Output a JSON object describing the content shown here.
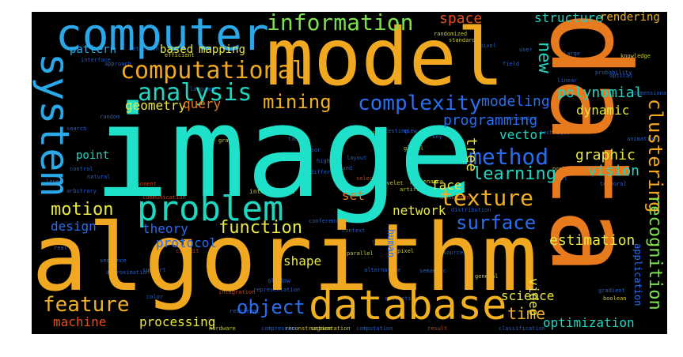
{
  "words": {
    "image": {
      "text": "image",
      "color": "#1fe0c8"
    },
    "data": {
      "text": "data",
      "color": "#e87a1e"
    },
    "algorithm": {
      "text": "algorithm",
      "color": "#f0a820"
    },
    "model": {
      "text": "model",
      "color": "#f0a820"
    },
    "computer": {
      "text": "computer",
      "color": "#2aa8e8"
    },
    "database": {
      "text": "database",
      "color": "#f0b020"
    },
    "system": {
      "text": "system",
      "color": "#2aa8e8"
    },
    "problem": {
      "text": "problem",
      "color": "#1fd6c0"
    },
    "computational": {
      "text": "computational",
      "color": "#f0a820"
    },
    "analysis": {
      "text": "analysis",
      "color": "#1fd6c0"
    },
    "information": {
      "text": "information",
      "color": "#7ee050"
    },
    "complexity": {
      "text": "complexity",
      "color": "#2a6ef0"
    },
    "method": {
      "text": "method",
      "color": "#2a6ef0"
    },
    "texture": {
      "text": "texture",
      "color": "#f0b020"
    },
    "surface": {
      "text": "surface",
      "color": "#2a6ef0"
    },
    "clustering": {
      "text": "clustering",
      "color": "#f0a820"
    },
    "recognition": {
      "text": "recognition",
      "color": "#7ee050"
    },
    "feature": {
      "text": "feature",
      "color": "#f0b020"
    },
    "object": {
      "text": "object",
      "color": "#2a6ef0"
    },
    "mining": {
      "text": "mining",
      "color": "#f0b020"
    },
    "new": {
      "text": "new",
      "color": "#1fd6c0"
    },
    "motion": {
      "text": "motion",
      "color": "#e8e840"
    },
    "function": {
      "text": "function",
      "color": "#e8e840"
    },
    "learning": {
      "text": "learning",
      "color": "#1fd6c0"
    },
    "time": {
      "text": "time",
      "color": "#f0b020"
    },
    "space": {
      "text": "space",
      "color": "#e05020"
    },
    "structure": {
      "text": "structure",
      "color": "#1fd6c0"
    },
    "rendering": {
      "text": "rendering",
      "color": "#f0b020"
    },
    "polynomial": {
      "text": "polynomial",
      "color": "#1fd6c0"
    },
    "modeling": {
      "text": "modeling",
      "color": "#2a6ef0"
    },
    "programming": {
      "text": "programming",
      "color": "#2a6ef0"
    },
    "graphic": {
      "text": "graphic",
      "color": "#e8e840"
    },
    "vision": {
      "text": "vision",
      "color": "#1fd6c0"
    },
    "vector": {
      "text": "vector",
      "color": "#1fd6c0"
    },
    "tree": {
      "text": "tree",
      "color": "#e8e840"
    },
    "dynamic": {
      "text": "dynamic",
      "color": "#e8e840"
    },
    "geometry": {
      "text": "geometry",
      "color": "#e8e840"
    },
    "query": {
      "text": "query",
      "color": "#e87a1e"
    },
    "theory": {
      "text": "theory",
      "color": "#2a6ef0"
    },
    "protocol": {
      "text": "protocol",
      "color": "#2a6ef0"
    },
    "design": {
      "text": "design",
      "color": "#2a6ef0"
    },
    "network": {
      "text": "network",
      "color": "#e8e840"
    },
    "estimation": {
      "text": "estimation",
      "color": "#e8e840"
    },
    "video": {
      "text": "video",
      "color": "#e8e840"
    },
    "science": {
      "text": "science",
      "color": "#e8e840"
    },
    "optimization": {
      "text": "optimization",
      "color": "#1fd6c0"
    },
    "processing": {
      "text": "processing",
      "color": "#e8e840"
    },
    "machine": {
      "text": "machine",
      "color": "#e05020"
    },
    "shape": {
      "text": "shape",
      "color": "#e8e840"
    },
    "set": {
      "text": "set",
      "color": "#e87a1e"
    },
    "face": {
      "text": "face",
      "color": "#e8e840"
    },
    "point": {
      "text": "point",
      "color": "#1fd6c0"
    },
    "pattern": {
      "text": "pattern",
      "color": "#2aa8e8"
    },
    "based": {
      "text": "based",
      "color": "#e8e840"
    },
    "mapping": {
      "text": "mapping",
      "color": "#e8e840"
    },
    "application": {
      "text": "application",
      "color": "#2a6ef0"
    },
    "human": {
      "text": "human",
      "color": "#2a6ef0"
    }
  },
  "small_words": [
    {
      "text": "interface",
      "color": "#2a6ef0"
    },
    {
      "text": "approach",
      "color": "#2a6ef0"
    },
    {
      "text": "detection",
      "color": "#2a6ef0"
    },
    {
      "text": "efficient",
      "color": "#e8e840"
    },
    {
      "text": "language",
      "color": "#2a6ef0"
    },
    {
      "text": "graph",
      "color": "#e8e840"
    },
    {
      "text": "search",
      "color": "#2a6ef0"
    },
    {
      "text": "random",
      "color": "#2a6ef0"
    },
    {
      "text": "control",
      "color": "#2a6ef0"
    },
    {
      "text": "natural",
      "color": "#2a6ef0"
    },
    {
      "text": "component",
      "color": "#e05020"
    },
    {
      "text": "communication",
      "color": "#e05020"
    },
    {
      "text": "intelligence",
      "color": "#e8e840"
    },
    {
      "text": "shadow",
      "color": "#2a6ef0"
    },
    {
      "text": "integration",
      "color": "#e05020"
    },
    {
      "text": "representation",
      "color": "#2a6ef0"
    },
    {
      "text": "retrieval",
      "color": "#2a6ef0"
    },
    {
      "text": "sequence",
      "color": "#2a6ef0"
    },
    {
      "text": "approximation",
      "color": "#2a6ef0"
    },
    {
      "text": "support",
      "color": "#2a6ef0"
    },
    {
      "text": "color",
      "color": "#2a6ef0"
    },
    {
      "text": "hardware",
      "color": "#e8e840"
    },
    {
      "text": "compression",
      "color": "#2a6ef0"
    },
    {
      "text": "reconstruction",
      "color": "#e8e840"
    },
    {
      "text": "segmentation",
      "color": "#e8e840"
    },
    {
      "text": "computation",
      "color": "#2a6ef0"
    },
    {
      "text": "result",
      "color": "#e05020"
    },
    {
      "text": "classification",
      "color": "#2a6ef0"
    },
    {
      "text": "sampling",
      "color": "#2a6ef0"
    },
    {
      "text": "gradient",
      "color": "#2a6ef0"
    },
    {
      "text": "boolean",
      "color": "#e8e840"
    },
    {
      "text": "statistical",
      "color": "#2a6ef0"
    },
    {
      "text": "general",
      "color": "#e8e840"
    },
    {
      "text": "semantic",
      "color": "#2a6ef0"
    },
    {
      "text": "alternative",
      "color": "#2a6ef0"
    },
    {
      "text": "source",
      "color": "#2a6ef0"
    },
    {
      "text": "parallel",
      "color": "#e8e840"
    },
    {
      "text": "pixel",
      "color": "#e8e840"
    },
    {
      "text": "artificial",
      "color": "#e8e840"
    },
    {
      "text": "selection",
      "color": "#e05020"
    },
    {
      "text": "wavelet",
      "color": "#e8e840"
    },
    {
      "text": "provenance",
      "color": "#e8e840"
    },
    {
      "text": "management",
      "color": "#e05020"
    },
    {
      "text": "distribution",
      "color": "#2a6ef0"
    },
    {
      "text": "temporal",
      "color": "#2a6ef0"
    },
    {
      "text": "technique",
      "color": "#2a6ef0"
    },
    {
      "text": "animation",
      "color": "#2a6ef0"
    },
    {
      "text": "knowledge",
      "color": "#e8e840"
    },
    {
      "text": "optical",
      "color": "#2a6ef0"
    },
    {
      "text": "linear",
      "color": "#2a6ef0"
    },
    {
      "text": "constraint",
      "color": "#2a6ef0"
    },
    {
      "text": "large",
      "color": "#2a6ef0"
    },
    {
      "text": "field",
      "color": "#2a6ef0"
    },
    {
      "text": "user",
      "color": "#2a6ef0"
    },
    {
      "text": "pixel",
      "color": "#2a6ef0"
    },
    {
      "text": "standard",
      "color": "#e8e840"
    },
    {
      "text": "randomized",
      "color": "#e8e840"
    },
    {
      "text": "dimensional",
      "color": "#2a6ef0"
    },
    {
      "text": "probability",
      "color": "#2a6ef0"
    },
    {
      "text": "digital",
      "color": "#e8e840"
    },
    {
      "text": "testing",
      "color": "#2a6ef0"
    },
    {
      "text": "view",
      "color": "#2a6ef0"
    },
    {
      "text": "key",
      "color": "#2a6ef0"
    },
    {
      "text": "task",
      "color": "#2a6ef0"
    },
    {
      "text": "sensor",
      "color": "#2a6ef0"
    },
    {
      "text": "high",
      "color": "#2a6ef0"
    },
    {
      "text": "different",
      "color": "#2a6ef0"
    },
    {
      "text": "bound",
      "color": "#2a6ef0"
    },
    {
      "text": "layout",
      "color": "#2a6ef0"
    },
    {
      "text": "global",
      "color": "#e8e840"
    },
    {
      "text": "level",
      "color": "#2a6ef0"
    },
    {
      "text": "arbitrary",
      "color": "#2a6ef0"
    },
    {
      "text": "real",
      "color": "#2a6ef0"
    },
    {
      "text": "circuit",
      "color": "#e05020"
    },
    {
      "text": "conference",
      "color": "#2a6ef0"
    },
    {
      "text": "context",
      "color": "#2a6ef0"
    },
    {
      "text": "cell",
      "color": "#2a6ef0"
    },
    {
      "text": "parameter",
      "color": "#2a6ef0"
    },
    {
      "text": "probabilistic",
      "color": "#e8e840"
    },
    {
      "text": "test",
      "color": "#2a6ef0"
    },
    {
      "text": "line",
      "color": "#2a6ef0"
    }
  ]
}
